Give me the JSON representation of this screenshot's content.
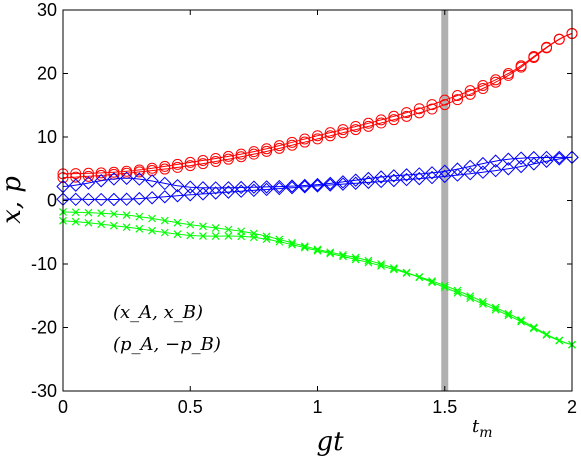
{
  "chart_data": {
    "type": "scatter",
    "xlabel": "gt",
    "ylabel": "x, p",
    "xlim": [
      0,
      2
    ],
    "ylim": [
      -30,
      30
    ],
    "xticks": [
      0,
      0.5,
      1,
      1.5,
      2
    ],
    "yticks": [
      30,
      20,
      10,
      0,
      -10,
      -20,
      -30
    ],
    "xtick_labels": [
      "0",
      "0.5",
      "1",
      "1.5",
      "2"
    ],
    "ytick_labels": [
      "30",
      "20",
      "10",
      "0",
      "-10",
      "-20",
      "-30"
    ],
    "grid": false,
    "vertical_marker": {
      "x": 1.5,
      "color": "#b0b0b0",
      "label": "t_m"
    },
    "annotations": [
      "(x_A, x_B)",
      "(p_A, −p_B)"
    ],
    "series": [
      {
        "marker": "circle",
        "color": "#ff0000",
        "x": [
          0,
          0.25,
          0.5,
          0.75,
          1,
          1.25,
          1.5,
          1.75,
          2
        ],
        "y": [
          3.6,
          4.3,
          5.5,
          7.3,
          9.7,
          12.2,
          15.1,
          19.7,
          26.3
        ]
      },
      {
        "marker": "circle",
        "color": "#ff0000",
        "x": [
          0,
          0.25,
          0.5,
          0.75,
          1,
          1.25,
          1.5,
          1.75,
          2
        ],
        "y": [
          4.2,
          4.6,
          6.0,
          7.7,
          10.2,
          12.7,
          15.8,
          20.0,
          26.3
        ]
      },
      {
        "marker": "diamond",
        "color": "#0000ff",
        "x": [
          0,
          0.25,
          0.5,
          0.75,
          1,
          1.25,
          1.5,
          1.75,
          2
        ],
        "y": [
          0.2,
          0.2,
          0.9,
          1.6,
          2.3,
          3.0,
          3.8,
          5.0,
          6.8
        ]
      },
      {
        "marker": "diamond",
        "color": "#0000ff",
        "x": [
          0,
          0.25,
          0.5,
          0.75,
          1,
          1.25,
          1.5,
          1.75,
          2
        ],
        "y": [
          2.2,
          3.5,
          2.1,
          2.1,
          2.5,
          3.7,
          4.6,
          6.5,
          6.8
        ]
      },
      {
        "marker": "x",
        "color": "#00ff00",
        "x": [
          0,
          0.25,
          0.5,
          0.75,
          1,
          1.25,
          1.5,
          1.75,
          2
        ],
        "y": [
          -1.8,
          -2.3,
          -3.8,
          -5.2,
          -7.7,
          -10.0,
          -13.7,
          -18.1,
          -22.7
        ]
      },
      {
        "marker": "x",
        "color": "#00ff00",
        "x": [
          0,
          0.25,
          0.5,
          0.75,
          1,
          1.25,
          1.5,
          1.75,
          2
        ],
        "y": [
          -3.2,
          -4.2,
          -5.5,
          -5.8,
          -7.9,
          -10.3,
          -13.4,
          -17.8,
          -22.7
        ]
      }
    ]
  }
}
